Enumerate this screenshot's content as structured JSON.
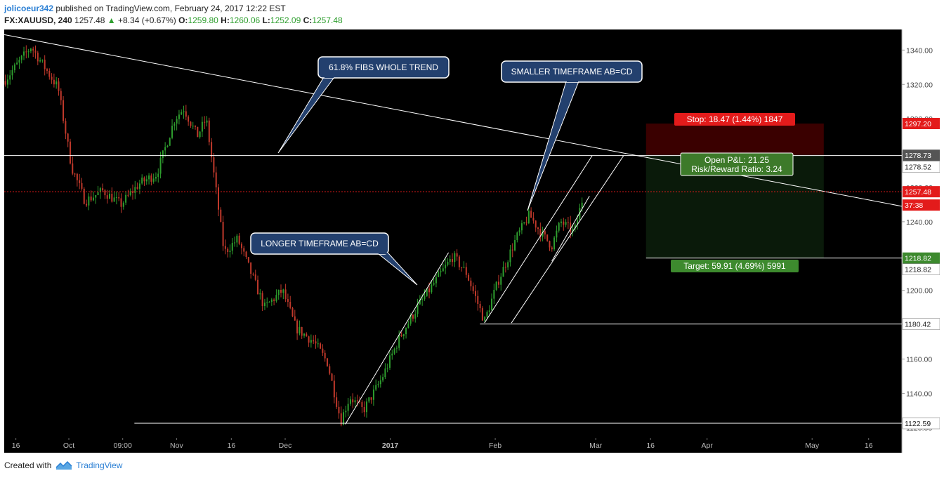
{
  "header": {
    "author": "jolicoeur342",
    "published_text": "published on TradingView.com, February 24, 2017 12:22 EST"
  },
  "symbol_line": {
    "symbol": "FX:XAUUSD, 240",
    "last": "1257.48",
    "change": "+8.34 (+0.67%)",
    "o_label": "O:",
    "o": "1259.80",
    "h_label": "H:",
    "h": "1260.06",
    "l_label": "L:",
    "l": "1252.09",
    "c_label": "C:",
    "c": "1257.48",
    "up_arrow": "▲"
  },
  "footer": {
    "created_with": "Created with",
    "brand": "TradingView"
  },
  "colors": {
    "background": "#000000",
    "candle_up": "#2e9e2e",
    "candle_down": "#c0392b",
    "callout_fill": "#23406e",
    "stop_zone": "#3a0000",
    "target_zone": "#0a1a0a",
    "stop_badge": "#e31b1b",
    "target_badge": "#3d8a2e"
  },
  "chart_data": {
    "type": "candlestick",
    "symbol": "FX:XAUUSD",
    "timeframe": "240",
    "ylim": [
      1114,
      1352
    ],
    "y_ticks": [
      1120,
      1140,
      1160,
      1180,
      1200,
      1220,
      1240,
      1260,
      1280,
      1300,
      1320,
      1340
    ],
    "y_tick_labels": [
      "1120.00",
      "1140.00",
      "1160.00",
      "1180.00",
      "1200.00",
      "1220.00",
      "1240.00",
      "1260.00",
      "1280.00",
      "1300.00",
      "1320.00",
      "1340.00"
    ],
    "x_tick_labels": [
      "16",
      "Oct",
      "09:00",
      "Nov",
      "16",
      "Dec",
      "2017",
      "Feb",
      "Mar",
      "16",
      "Apr",
      "May",
      "16"
    ],
    "x_tick_bold": "2017",
    "price_path": [
      [
        0,
        1322
      ],
      [
        0.03,
        1342
      ],
      [
        0.06,
        1318
      ],
      [
        0.075,
        1272
      ],
      [
        0.09,
        1252
      ],
      [
        0.11,
        1258
      ],
      [
        0.13,
        1250
      ],
      [
        0.15,
        1262
      ],
      [
        0.17,
        1268
      ],
      [
        0.19,
        1300
      ],
      [
        0.2,
        1306
      ],
      [
        0.215,
        1290
      ],
      [
        0.225,
        1300
      ],
      [
        0.235,
        1262
      ],
      [
        0.245,
        1222
      ],
      [
        0.26,
        1230
      ],
      [
        0.275,
        1210
      ],
      [
        0.29,
        1190
      ],
      [
        0.31,
        1200
      ],
      [
        0.325,
        1178
      ],
      [
        0.345,
        1170
      ],
      [
        0.36,
        1158
      ],
      [
        0.375,
        1124
      ],
      [
        0.385,
        1138
      ],
      [
        0.4,
        1130
      ],
      [
        0.42,
        1148
      ],
      [
        0.44,
        1172
      ],
      [
        0.46,
        1190
      ],
      [
        0.48,
        1205
      ],
      [
        0.5,
        1220
      ],
      [
        0.515,
        1210
      ],
      [
        0.525,
        1196
      ],
      [
        0.535,
        1182
      ],
      [
        0.55,
        1205
      ],
      [
        0.57,
        1230
      ],
      [
        0.585,
        1244
      ],
      [
        0.6,
        1232
      ],
      [
        0.61,
        1226
      ],
      [
        0.62,
        1240
      ],
      [
        0.635,
        1234
      ],
      [
        0.645,
        1255
      ]
    ],
    "trendlines": [
      {
        "kind": "descending",
        "from": [
          0,
          1349
        ],
        "to": [
          1,
          1249
        ]
      },
      {
        "kind": "horizontal",
        "y": 1278.52,
        "from_x": 0,
        "to_x": 1
      },
      {
        "kind": "horizontal",
        "y": 1122.59,
        "from_x": 0.145,
        "to_x": 1
      },
      {
        "kind": "horizontal",
        "y": 1180.42,
        "from_x": 0.53,
        "to_x": 1
      },
      {
        "kind": "horizontal",
        "y": 1218.82,
        "from_x": 0.715,
        "to_x": 1
      }
    ],
    "price_labels": [
      {
        "value": "1297.20",
        "color": "#e31b1b",
        "y": 1297.2
      },
      {
        "value": "1278.73",
        "color": "#555555",
        "y": 1278.73
      },
      {
        "value": "1278.52",
        "color": "#ffffff",
        "y": 1278.52
      },
      {
        "value": "1257.48",
        "color": "#e31b1b",
        "y": 1257.48
      },
      {
        "value": "37:38",
        "color": "#e31b1b",
        "y": 1257.48
      },
      {
        "value": "1218.82",
        "color": "#3d8a2e",
        "y": 1218.82
      },
      {
        "value": "1218.82",
        "color": "#ffffff",
        "y": 1218.82
      },
      {
        "value": "1180.42",
        "color": "#ffffff",
        "y": 1180.42
      },
      {
        "value": "1122.59",
        "color": "#ffffff",
        "y": 1122.59
      }
    ],
    "last_price": 1257.48,
    "callouts": [
      {
        "text": "61.8% FIBS WHOLE TREND"
      },
      {
        "text": "SMALLER TIMEFRAME AB=CD"
      },
      {
        "text": "LONGER TIMEFRAME AB=CD"
      }
    ],
    "position": {
      "stop_label": "Stop: 18.47 (1.44%) 1847",
      "pnl_label": "Open P&L: 21.25",
      "rr_label": "Risk/Reward Ratio: 3.24",
      "target_label": "Target: 59.91 (4.69%) 5991",
      "entry": 1278.73,
      "stop": 1297.2,
      "target": 1218.82
    }
  }
}
